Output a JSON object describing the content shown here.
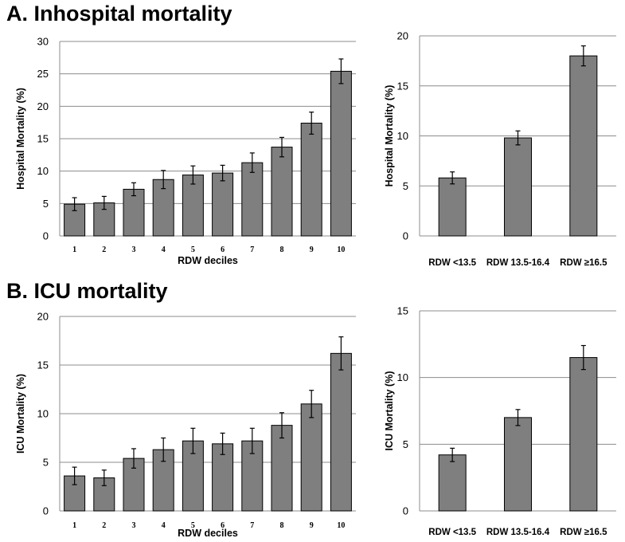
{
  "panels": {
    "a_title": "A. Inhospital mortality",
    "b_title": "B. ICU mortality"
  },
  "chart_data": [
    {
      "id": "a-deciles",
      "type": "bar",
      "categories": [
        "1",
        "2",
        "3",
        "4",
        "5",
        "6",
        "7",
        "8",
        "9",
        "10"
      ],
      "values": [
        4.9,
        5.1,
        7.2,
        8.7,
        9.4,
        9.7,
        11.3,
        13.7,
        17.4,
        25.4
      ],
      "error": [
        1.0,
        1.0,
        1.0,
        1.4,
        1.4,
        1.2,
        1.5,
        1.5,
        1.7,
        1.9
      ],
      "yticks": [
        0,
        5,
        10,
        15,
        20,
        25,
        30
      ],
      "ylim": [
        0,
        30
      ],
      "xlabel": "RDW deciles",
      "ylabel": "Hospital Mortality (%)",
      "title": ""
    },
    {
      "id": "a-groups",
      "type": "bar",
      "categories": [
        "RDW <13.5",
        "RDW 13.5-16.4",
        "RDW ≥16.5"
      ],
      "values": [
        5.8,
        9.8,
        18.0
      ],
      "error": [
        0.6,
        0.7,
        1.0
      ],
      "yticks": [
        0,
        5,
        10,
        15,
        20
      ],
      "ylim": [
        0,
        20
      ],
      "xlabel": "",
      "ylabel": "Hospital Mortality (%)",
      "title": ""
    },
    {
      "id": "b-deciles",
      "type": "bar",
      "categories": [
        "1",
        "2",
        "3",
        "4",
        "5",
        "6",
        "7",
        "8",
        "9",
        "10"
      ],
      "values": [
        3.6,
        3.4,
        5.4,
        6.3,
        7.2,
        6.9,
        7.2,
        8.8,
        11.0,
        16.2
      ],
      "error": [
        0.9,
        0.8,
        1.0,
        1.2,
        1.3,
        1.1,
        1.3,
        1.3,
        1.4,
        1.7
      ],
      "yticks": [
        0,
        5,
        10,
        15,
        20
      ],
      "ylim": [
        0,
        20
      ],
      "xlabel": "RDW deciles",
      "ylabel": "ICU Mortality (%)",
      "title": ""
    },
    {
      "id": "b-groups",
      "type": "bar",
      "categories": [
        "RDW <13.5",
        "RDW 13.5-16.4",
        "RDW ≥16.5"
      ],
      "values": [
        4.2,
        7.0,
        11.5
      ],
      "error": [
        0.5,
        0.6,
        0.9
      ],
      "yticks": [
        0,
        5,
        10,
        15
      ],
      "ylim": [
        0,
        15
      ],
      "xlabel": "",
      "ylabel": "ICU Mortality (%)",
      "title": ""
    }
  ]
}
